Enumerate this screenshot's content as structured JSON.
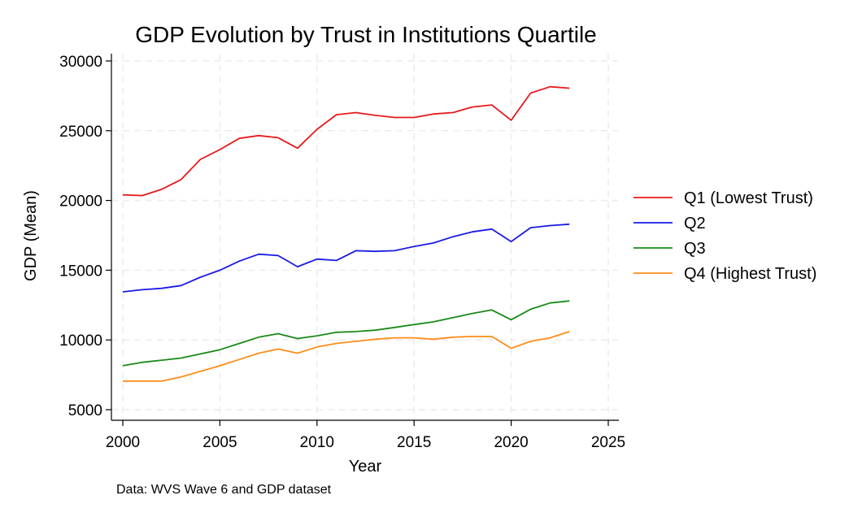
{
  "chart_data": {
    "type": "line",
    "title": "GDP Evolution by Trust in Institutions Quartile",
    "xlabel": "Year",
    "ylabel": "GDP (Mean)",
    "note": "Data: WVS Wave 6 and GDP dataset",
    "xlim": [
      2000,
      2025
    ],
    "ylim": [
      5000,
      30000
    ],
    "xticks": [
      2000,
      2005,
      2010,
      2015,
      2020,
      2025
    ],
    "yticks": [
      5000,
      10000,
      15000,
      20000,
      25000,
      30000
    ],
    "grid": true,
    "legend_position": "right",
    "x": [
      2000,
      2001,
      2002,
      2003,
      2004,
      2005,
      2006,
      2007,
      2008,
      2009,
      2010,
      2011,
      2012,
      2013,
      2014,
      2015,
      2016,
      2017,
      2018,
      2019,
      2020,
      2021,
      2022,
      2023
    ],
    "series": [
      {
        "name": "Q1 (Lowest Trust)",
        "color": "#e8191b",
        "values": [
          20400,
          20350,
          20800,
          21500,
          22950,
          23650,
          24450,
          24650,
          24500,
          23750,
          25100,
          26150,
          26300,
          26100,
          25950,
          25950,
          26200,
          26300,
          26700,
          26850,
          25750,
          27700,
          28150,
          28050
        ]
      },
      {
        "name": "Q2",
        "color": "#1a1ae6",
        "values": [
          13450,
          13600,
          13700,
          13900,
          14500,
          15000,
          15650,
          16150,
          16050,
          15250,
          15800,
          15700,
          16400,
          16350,
          16400,
          16700,
          16950,
          17400,
          17750,
          17950,
          17050,
          18050,
          18200,
          18300
        ]
      },
      {
        "name": "Q3",
        "color": "#198a19",
        "values": [
          8150,
          8400,
          8550,
          8700,
          9000,
          9300,
          9750,
          10200,
          10450,
          10100,
          10300,
          10550,
          10600,
          10700,
          10900,
          11100,
          11300,
          11600,
          11900,
          12150,
          11450,
          12200,
          12650,
          12800
        ]
      },
      {
        "name": "Q4 (Highest Trust)",
        "color": "#ff8c1a",
        "values": [
          7050,
          7050,
          7050,
          7350,
          7750,
          8150,
          8600,
          9050,
          9350,
          9050,
          9500,
          9750,
          9900,
          10050,
          10150,
          10150,
          10050,
          10200,
          10250,
          10250,
          9400,
          9900,
          10150,
          10600
        ]
      }
    ]
  }
}
